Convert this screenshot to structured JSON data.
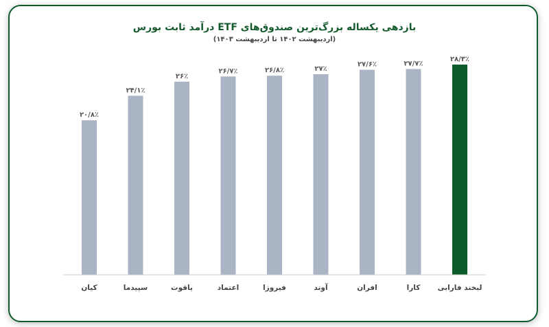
{
  "chart_data": {
    "type": "bar",
    "title": "بازدهی یکساله بزرگ‌ترین صندوق‌های ETF درآمد ثابت بورس",
    "subtitle": "(اردیبهشت ۱۴۰۲ تا اردیبهشت ۱۴۰۳)",
    "categories": [
      "کیان",
      "سپیدما",
      "یاقوت",
      "اعتماد",
      "فیروزا",
      "آوند",
      "افران",
      "کارا",
      "لبخند فارابی"
    ],
    "values": [
      20.8,
      24.1,
      26.0,
      26.7,
      26.8,
      27.0,
      27.6,
      27.7,
      28.3
    ],
    "value_labels": [
      "۲۰/۸٪",
      "۲۴/۱٪",
      "۲۶٪",
      "۲۶/۷٪",
      "۲۶/۸٪",
      "۲۷٪",
      "۲۷/۶٪",
      "۲۷/۷٪",
      "۲۸/۳٪"
    ],
    "ylim": [
      0,
      28.3
    ],
    "grid": false,
    "colors": {
      "default": "#aab4c5",
      "highlight": "#0d5a2a"
    },
    "highlight_index": 8
  },
  "frame": {
    "border_color": "#0e5a2c"
  }
}
